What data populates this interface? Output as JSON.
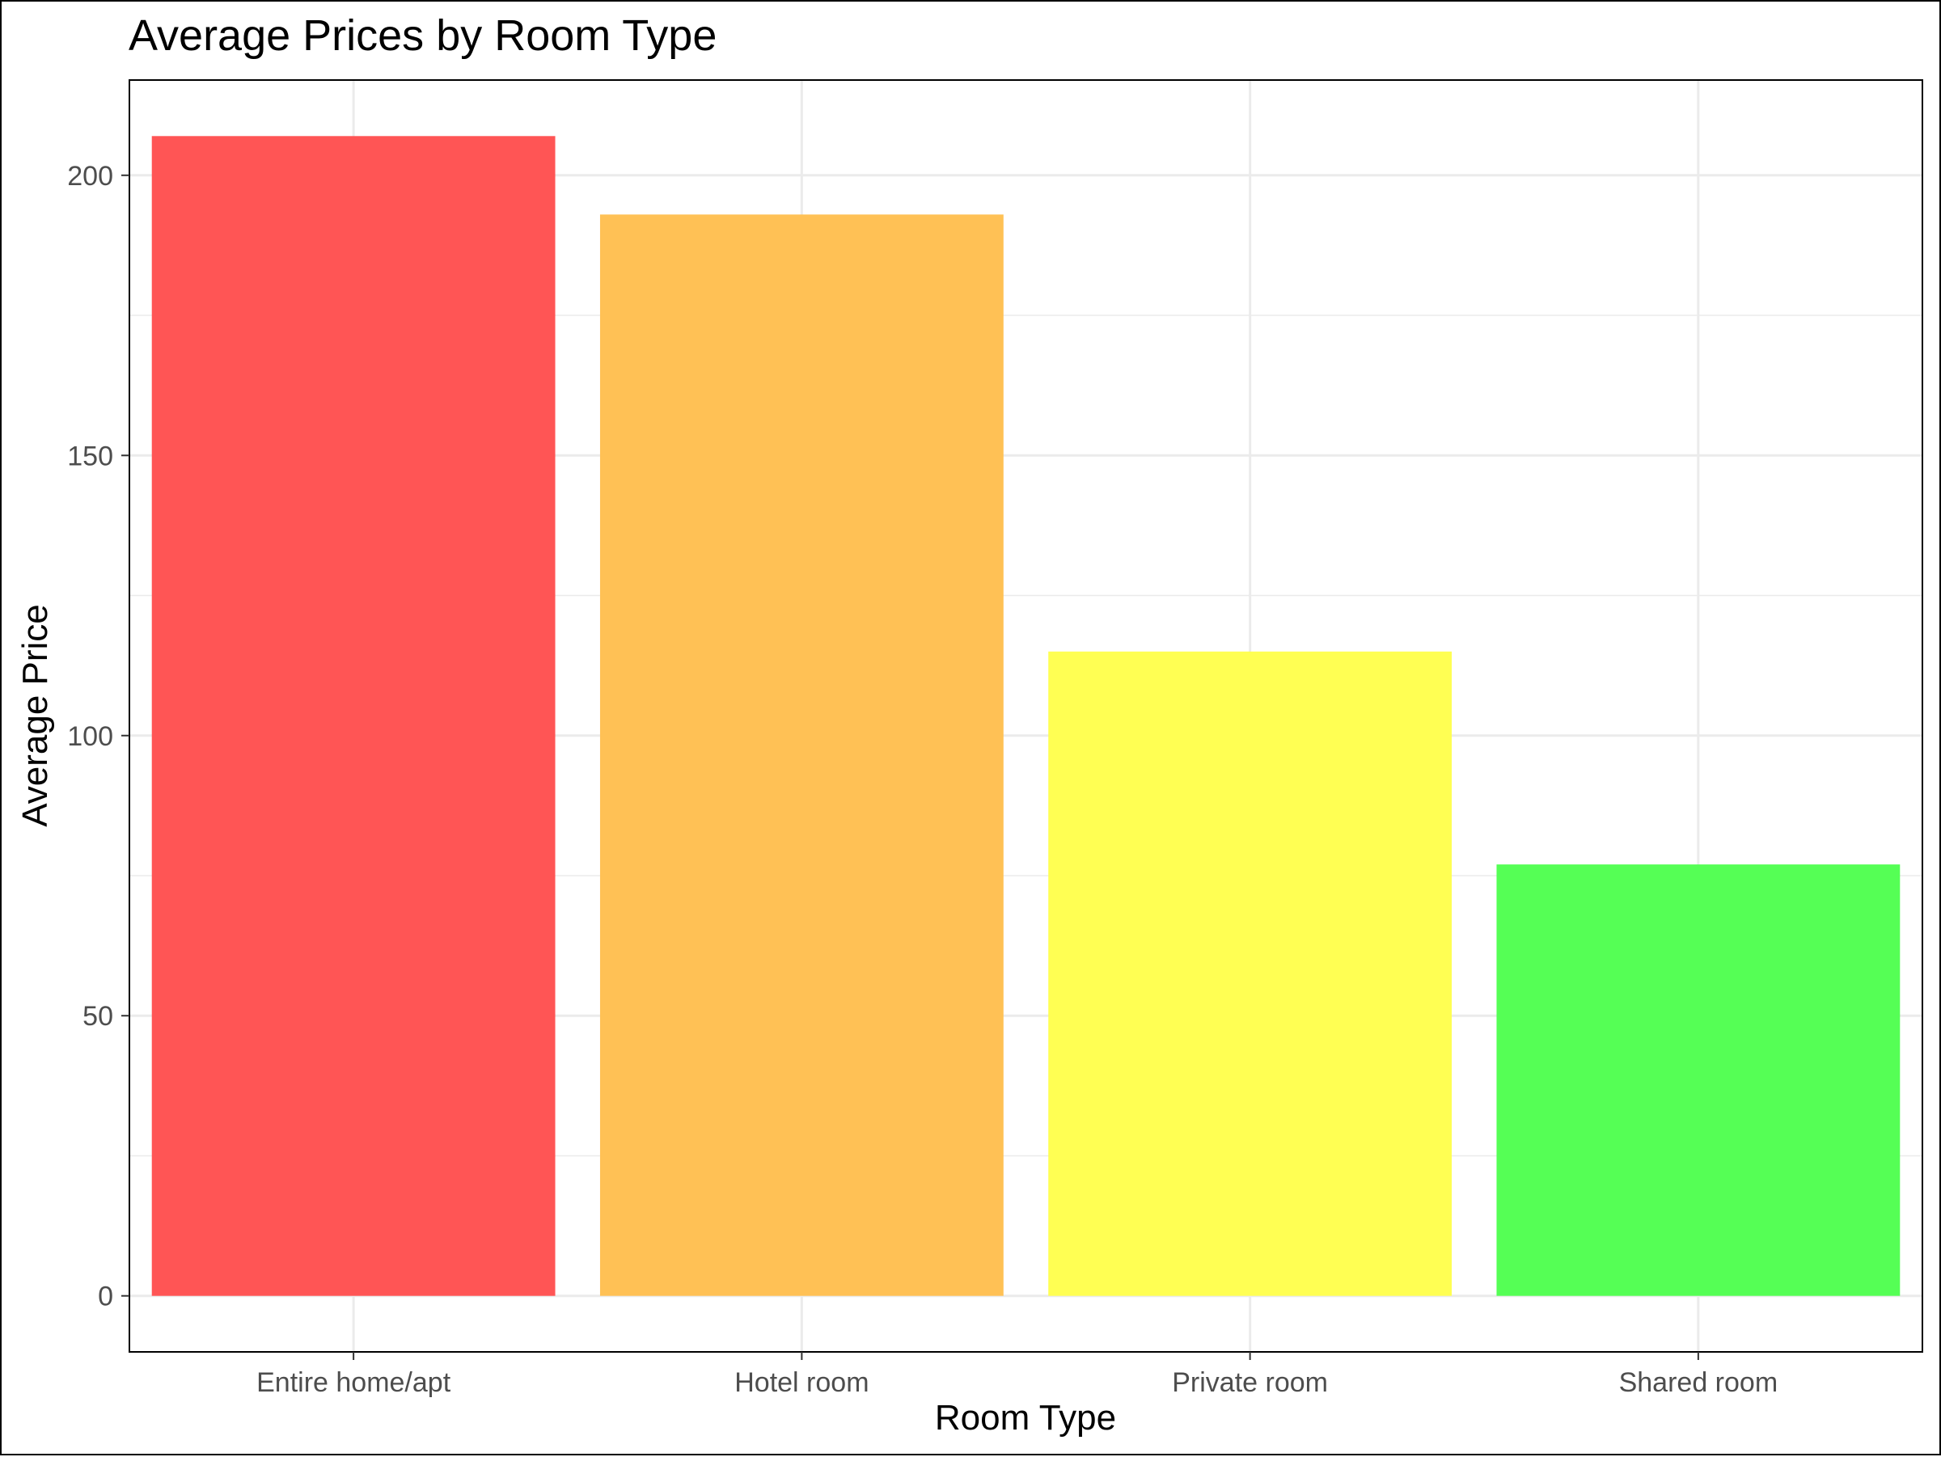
{
  "chart_data": {
    "type": "bar",
    "title": "Average Prices by Room Type",
    "xlabel": "Room Type",
    "ylabel": "Average Price",
    "categories": [
      "Entire home/apt",
      "Hotel room",
      "Private room",
      "Shared room"
    ],
    "values": [
      207,
      193,
      115,
      77
    ],
    "colors": [
      "#ff5050",
      "#ffbf50",
      "#ffff4d",
      "#50ff50"
    ],
    "ylim": [
      -10,
      217
    ],
    "yticks": [
      0,
      50,
      100,
      150,
      200
    ],
    "yticks_minor": [
      25,
      75,
      125,
      175
    ],
    "grid": true,
    "legend": "none"
  }
}
